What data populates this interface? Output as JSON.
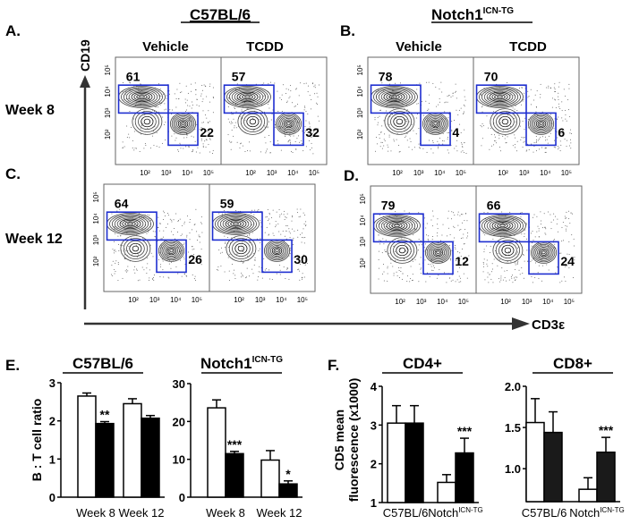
{
  "figure": {
    "panel_labels": {
      "A": "A.",
      "B": "B.",
      "C": "C.",
      "D": "D.",
      "E": "E.",
      "F": "F."
    },
    "strain_wt": "C57BL/6",
    "strain_tg": "Notch1",
    "strain_tg_sup": "ICN-TG",
    "treatments": [
      "Vehicle",
      "TCDD"
    ],
    "rows": [
      "Week 8",
      "Week 12"
    ],
    "y_marker": "CD19",
    "x_marker": "CD3ε",
    "flow_ticks": [
      "10²",
      "10³",
      "10⁴",
      "10⁵"
    ],
    "flow_panels": [
      {
        "panel": "A",
        "row": "Week 8",
        "strain": "C57BL/6",
        "plots": [
          {
            "treatment": "Vehicle",
            "b_pct": "61",
            "t_pct": "22"
          },
          {
            "treatment": "TCDD",
            "b_pct": "57",
            "t_pct": "32"
          }
        ]
      },
      {
        "panel": "B",
        "row": "Week 8",
        "strain": "Notch1ICN-TG",
        "plots": [
          {
            "treatment": "Vehicle",
            "b_pct": "78",
            "t_pct": "4"
          },
          {
            "treatment": "TCDD",
            "b_pct": "70",
            "t_pct": "6"
          }
        ]
      },
      {
        "panel": "C",
        "row": "Week 12",
        "strain": "C57BL/6",
        "plots": [
          {
            "treatment": "Vehicle",
            "b_pct": "64",
            "t_pct": "26"
          },
          {
            "treatment": "TCDD",
            "b_pct": "59",
            "t_pct": "30"
          }
        ]
      },
      {
        "panel": "D",
        "row": "Week 12",
        "strain": "Notch1ICN-TG",
        "plots": [
          {
            "treatment": "Vehicle",
            "b_pct": "79",
            "t_pct": "12"
          },
          {
            "treatment": "TCDD",
            "b_pct": "66",
            "t_pct": "24"
          }
        ]
      }
    ],
    "gate_color": "#1f2fd0",
    "e_ylabel": "B : T cell ratio",
    "f_ylabel_1": "CD5 mean",
    "f_ylabel_2": "fluorescence (x1000)"
  },
  "chart_data": [
    {
      "type": "bar",
      "panel": "E",
      "title": "C57BL/6",
      "ylabel": "B : T cell ratio",
      "ylim": [
        0,
        3
      ],
      "yticks": [
        "0",
        "1",
        "2",
        "3"
      ],
      "categories": [
        "Week 8",
        "Week 12"
      ],
      "bar_colors": [
        "#ffffff",
        "#000000"
      ],
      "values": [
        [
          2.65,
          1.93
        ],
        [
          2.45,
          2.07
        ]
      ],
      "errors_upper": [
        [
          2.73,
          1.98
        ],
        [
          2.58,
          2.14
        ]
      ],
      "significance": [
        [
          "",
          "**"
        ],
        [
          "",
          ""
        ]
      ]
    },
    {
      "type": "bar",
      "panel": "E",
      "title": "Notch1",
      "title_sup": "ICN-TG",
      "ylim": [
        0,
        30
      ],
      "yticks": [
        "0",
        "10",
        "20",
        "30"
      ],
      "categories": [
        "Week 8",
        "Week 12"
      ],
      "bar_colors": [
        "#ffffff",
        "#000000"
      ],
      "values": [
        [
          23.6,
          11.5
        ],
        [
          9.8,
          3.5
        ]
      ],
      "errors_upper": [
        [
          25.7,
          12.1
        ],
        [
          12.3,
          4.3
        ]
      ],
      "significance": [
        [
          "",
          "***"
        ],
        [
          "",
          "*"
        ]
      ]
    },
    {
      "type": "bar",
      "panel": "F",
      "title": "CD4+",
      "ylabel": "CD5 mean fluorescence (x1000)",
      "ylim": [
        1,
        4
      ],
      "yticks": [
        "1",
        "2",
        "3",
        "4"
      ],
      "categories": [
        "C57BL/6",
        "Notch"
      ],
      "category_sup": [
        "",
        "ICN-TG"
      ],
      "bar_colors": [
        "#ffffff",
        "#000000"
      ],
      "values": [
        [
          3.05,
          3.05
        ],
        [
          1.52,
          2.28
        ]
      ],
      "errors_upper": [
        [
          3.5,
          3.5
        ],
        [
          1.72,
          2.66
        ]
      ],
      "significance": [
        [
          "",
          ""
        ],
        [
          "",
          "***"
        ]
      ]
    },
    {
      "type": "bar",
      "panel": "F",
      "title": "CD8+",
      "ylim": [
        0.6,
        2.0
      ],
      "yticks": [
        "1.0",
        "1.5",
        "2.0"
      ],
      "ytick_values": [
        1.0,
        1.5,
        2.0
      ],
      "categories": [
        "C57BL/6",
        "Notch"
      ],
      "category_sup": [
        "",
        "ICN-TG"
      ],
      "bar_colors": [
        "#ffffff",
        "#1a1a1a"
      ],
      "values": [
        [
          1.56,
          1.44
        ],
        [
          0.75,
          1.2
        ]
      ],
      "errors_upper": [
        [
          1.85,
          1.69
        ],
        [
          0.89,
          1.38
        ]
      ],
      "significance": [
        [
          "",
          ""
        ],
        [
          "",
          "***"
        ]
      ]
    }
  ]
}
